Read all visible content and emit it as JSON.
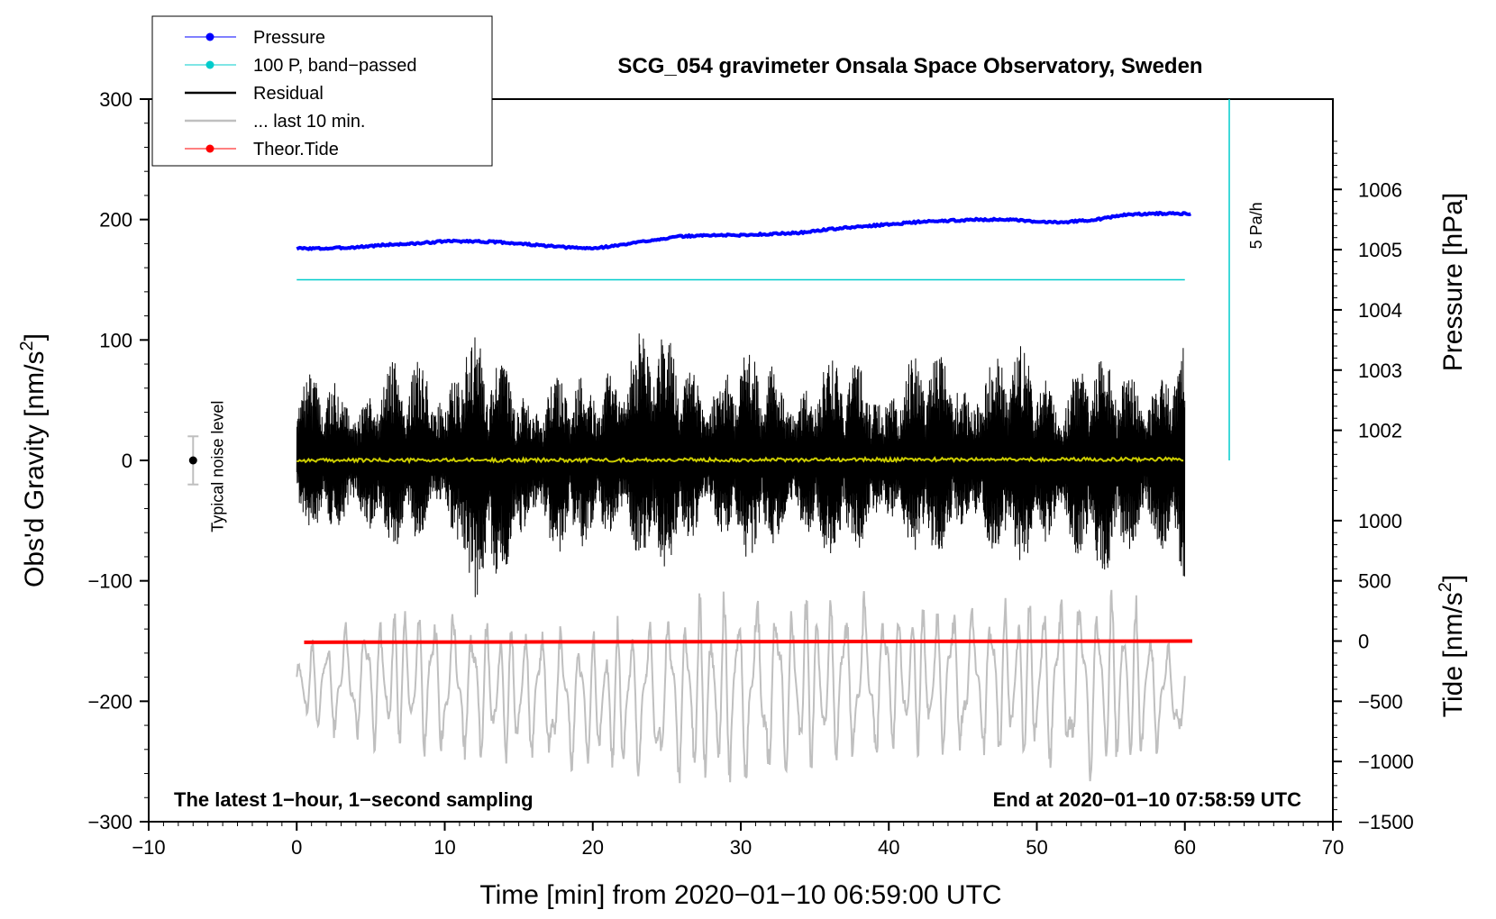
{
  "chart_data": {
    "type": "line",
    "title": "SCG_054 gravimeter Onsala Space Observatory, Sweden",
    "xlabel": "Time [min] from 2020−01−10 06:59:00 UTC",
    "ylabel": "Obs'd Gravity [nm/s",
    "ylabel_sup": "2",
    "ylabel_close": "]",
    "xlim": [
      -10,
      70
    ],
    "ylim": [
      -300,
      300
    ],
    "x_ticks": [
      -10,
      0,
      10,
      20,
      30,
      40,
      50,
      60,
      70
    ],
    "x_tick_labels": [
      "−10",
      "0",
      "10",
      "20",
      "30",
      "40",
      "50",
      "60",
      "70"
    ],
    "y_ticks": [
      300,
      200,
      100,
      0,
      -100,
      -200,
      -300
    ],
    "y_tick_labels": [
      "300",
      "200",
      "100",
      "0",
      "−100",
      "−200",
      "−300"
    ],
    "pressure_axis": {
      "label": "Pressure [hPa]",
      "ticks": [
        1002,
        1003,
        1004,
        1005,
        1006
      ],
      "tick_labels": [
        "1002",
        "1003",
        "1004",
        "1005",
        "1006"
      ],
      "ref_value": 1004.5,
      "ref_gravity": 150,
      "gravity_per_hpa": 50
    },
    "tide_axis": {
      "label": "Tide [nm/s",
      "label_sup": "2",
      "label_close": "]",
      "ticks": [
        1000,
        500,
        0,
        -500,
        -1000,
        -1500
      ],
      "tick_labels": [
        "1000",
        "500",
        "0",
        "−500",
        "−1000",
        "−1500"
      ],
      "ref_gravity": -150,
      "gravity_per_unit": 0.1
    },
    "legend": [
      {
        "label": "Pressure",
        "color": "#0000ff",
        "marker": true
      },
      {
        "label": "100 P, band−passed",
        "color": "#00cccc",
        "marker": true
      },
      {
        "label": "Residual",
        "color": "#000000",
        "marker": false
      },
      {
        "label": "... last 10 min.",
        "color": "#bfbfbf",
        "marker": false
      },
      {
        "label": "Theor.Tide",
        "color": "#ff0000",
        "marker": true
      }
    ],
    "legend_position": "top-left",
    "series": [
      {
        "name": "Pressure",
        "color": "#0000ff",
        "x": [
          0,
          2,
          4,
          6,
          8,
          10,
          12,
          14,
          16,
          18,
          20,
          22,
          24,
          26,
          28,
          30,
          32,
          34,
          36,
          38,
          40,
          42,
          44,
          46,
          48,
          50,
          52,
          54,
          56,
          58,
          60.5
        ],
        "values": [
          176,
          176,
          177,
          179,
          180,
          182,
          182,
          181,
          179,
          177,
          176,
          179,
          183,
          186,
          187,
          187,
          188,
          189,
          192,
          194,
          196,
          198,
          199,
          200,
          200,
          198,
          198,
          200,
          204,
          205,
          205
        ]
      },
      {
        "name": "100 P, band−passed",
        "color": "#00cccc",
        "x": [
          0,
          60
        ],
        "values": [
          150,
          150
        ]
      },
      {
        "name": "Residual",
        "color": "#000000",
        "x_range": [
          0,
          60
        ],
        "amplitude_envelope": [
          {
            "x": 0,
            "max": 70,
            "min": -55
          },
          {
            "x": 5,
            "max": 80,
            "min": -80
          },
          {
            "x": 10,
            "max": 95,
            "min": -65
          },
          {
            "x": 11,
            "max": 125,
            "min": -125
          },
          {
            "x": 13.5,
            "max": 90,
            "min": -110
          },
          {
            "x": 20,
            "max": 70,
            "min": -70
          },
          {
            "x": 22,
            "max": 135,
            "min": -100
          },
          {
            "x": 28,
            "max": 95,
            "min": -80
          },
          {
            "x": 35,
            "max": 90,
            "min": -85
          },
          {
            "x": 40,
            "max": 90,
            "min": -80
          },
          {
            "x": 47,
            "max": 100,
            "min": -90
          },
          {
            "x": 55,
            "max": 85,
            "min": -95
          },
          {
            "x": 60,
            "max": 105,
            "min": -100
          }
        ]
      },
      {
        "name": "Yellow trend",
        "color": "#cccc00",
        "x": [
          0,
          60
        ],
        "values": [
          0,
          1
        ]
      },
      {
        "name": "... last 10 min.",
        "color": "#bfbfbf",
        "x_range": [
          0,
          60
        ],
        "centre": -200,
        "amplitude_envelope": [
          {
            "x": 0,
            "max": -150,
            "min": -225
          },
          {
            "x": 7,
            "max": -110,
            "min": -250
          },
          {
            "x": 20,
            "max": -135,
            "min": -265
          },
          {
            "x": 30,
            "max": -95,
            "min": -285
          },
          {
            "x": 42,
            "max": -110,
            "min": -250
          },
          {
            "x": 56,
            "max": -95,
            "min": -275
          },
          {
            "x": 60,
            "max": -165,
            "min": -230
          }
        ]
      },
      {
        "name": "Theor.Tide",
        "color": "#ff0000",
        "x": [
          0.5,
          60.5
        ],
        "values": [
          -151,
          -150
        ]
      }
    ],
    "annotations": {
      "five_pa": "5 Pa/h",
      "noise": "Typical noise level",
      "noise_center": 0,
      "noise_half_range": 20,
      "noise_x": -7,
      "five_pa_x": 63,
      "five_pa_range": [
        300,
        0
      ],
      "latest": "The latest 1−hour, 1−second sampling",
      "end": "End at 2020−01−10 07:58:59 UTC"
    }
  }
}
